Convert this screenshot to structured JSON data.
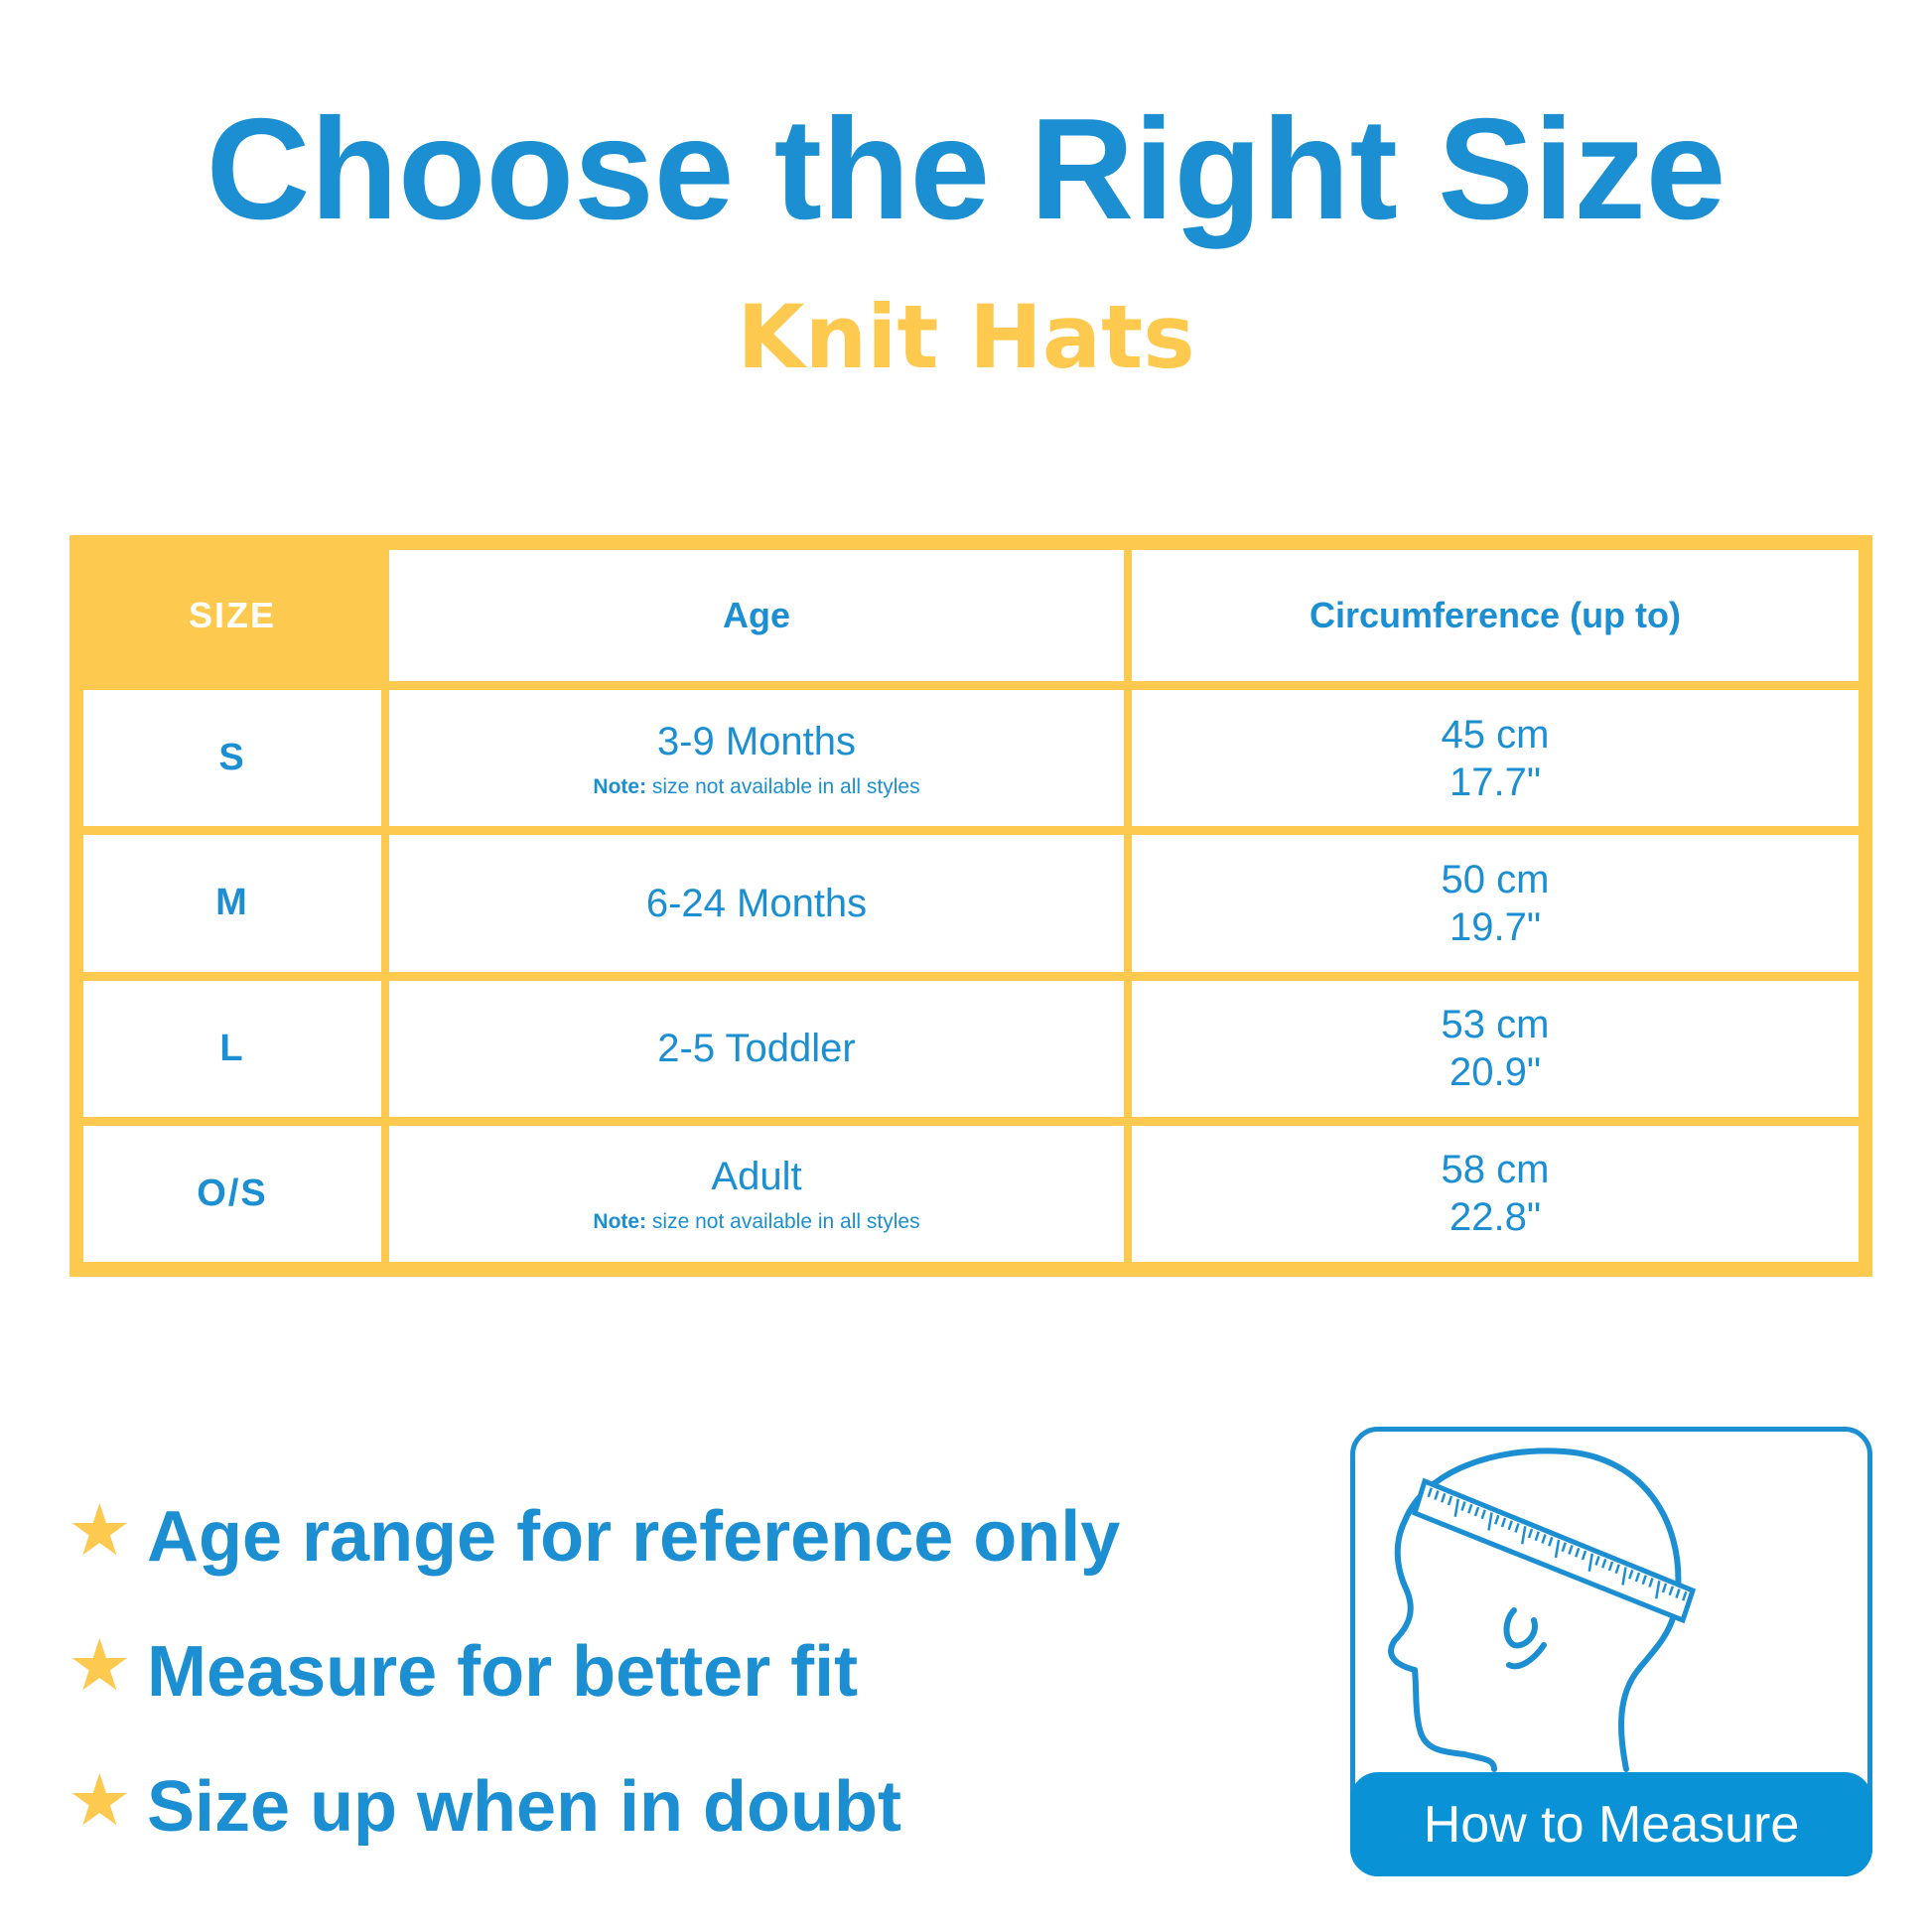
{
  "header": {
    "title": "Choose the Right Size",
    "subtitle": "Knit Hats"
  },
  "table": {
    "columns": [
      "SIZE",
      "Age",
      "Circumference (up to)"
    ],
    "rows": [
      {
        "size": "S",
        "age": "3-9 Months",
        "note_label": "Note:",
        "note": " size not available in all styles",
        "cm": "45 cm",
        "inch": "17.7\""
      },
      {
        "size": "M",
        "age": "6-24 Months",
        "cm": "50 cm",
        "inch": "19.7\""
      },
      {
        "size": "L",
        "age": "2-5 Toddler",
        "cm": "53 cm",
        "inch": "20.9\""
      },
      {
        "size": "O/S",
        "age": "Adult",
        "note_label": "Note:",
        "note": " size not available in all styles",
        "cm": "58 cm",
        "inch": "22.8\""
      }
    ]
  },
  "tips": [
    "Age range for reference only",
    "Measure for better fit",
    "Size up when in doubt"
  ],
  "tip_icon": "star-icon",
  "measure": {
    "label": "How to Measure",
    "icon": "head-measuring-tape-icon"
  },
  "colors": {
    "blue": "#1b8fd2",
    "yellow": "#fdc94f"
  }
}
